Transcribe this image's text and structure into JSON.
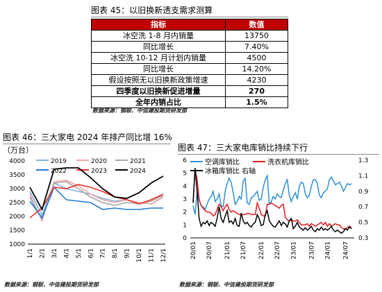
{
  "fig45": {
    "title": "图表 45：以旧换新透支需求测算",
    "headers": [
      "指标",
      "数值"
    ],
    "rows": [
      {
        "label": "冰空洗 1-8 月内销量",
        "value": "13750",
        "bold": false
      },
      {
        "label": "同比增长",
        "value": "7.40%",
        "bold": false
      },
      {
        "label": "冰空洗 10-12 月计划内销量",
        "value": "4500",
        "bold": false
      },
      {
        "label": "同比增长",
        "value": "14.20%",
        "bold": false
      },
      {
        "label": "假设按照无以旧换新政策增速",
        "value": "4230",
        "bold": false
      },
      {
        "label": "四季度以旧换新促进增量",
        "value": "270",
        "bold": true
      },
      {
        "label": "全年内销占比",
        "value": "1.5%",
        "bold": true
      }
    ],
    "source": "数据来源：钢联、中信建投期货研发部"
  },
  "fig46": {
    "title": "图表 46：三大家电 2024 年排产同比增 16%",
    "unit": "（万台）",
    "source": "数据来源：钢联、中信建投期货研发部"
  },
  "fig47": {
    "title": "图表 47：三大家电库销比持续下行",
    "source": "数据来源：钢联、中信建投期货研发部"
  },
  "chart_data": [
    {
      "type": "line",
      "title": "图表 46：三大家电 2024 年排产同比增 16%",
      "ylabel": "（万台）",
      "categories": [
        "1/1",
        "2/1",
        "3/1",
        "4/1",
        "5/1",
        "6/1",
        "7/1",
        "8/1",
        "9/1",
        "10/1",
        "11/1",
        "12/1"
      ],
      "ylim": [
        1000,
        4000
      ],
      "yticks": [
        1000,
        1500,
        2000,
        2500,
        3000,
        3500,
        4000
      ],
      "legend": "top",
      "series": [
        {
          "name": "2019",
          "color": "#7fb2e0",
          "values": [
            2900,
            2050,
            3200,
            3000,
            2900,
            2800,
            2650,
            2550,
            2600,
            2500,
            2450,
            2700
          ]
        },
        {
          "name": "2020",
          "color": "#f4a4a4",
          "values": [
            2800,
            1850,
            3250,
            3300,
            3100,
            2800,
            2600,
            2500,
            2600,
            2500,
            2450,
            2700
          ]
        },
        {
          "name": "2021",
          "color": "#a6a6a6",
          "values": [
            2700,
            1900,
            3200,
            3250,
            3000,
            2700,
            2500,
            2400,
            2500,
            2450,
            2550,
            2750
          ]
        },
        {
          "name": "2022",
          "color": "#1f77d4",
          "values": [
            2550,
            1950,
            3050,
            2600,
            2550,
            2500,
            2250,
            2300,
            2250,
            2250,
            2300,
            2300
          ]
        },
        {
          "name": "2023",
          "color": "#e8302a",
          "values": [
            1950,
            2300,
            3050,
            3000,
            3150,
            3050,
            2900,
            2700,
            2600,
            2450,
            2600,
            2800
          ]
        },
        {
          "name": "2024",
          "color": "#000000",
          "values": [
            3050,
            2250,
            3700,
            3750,
            3750,
            3400,
            3000,
            2700,
            2650,
            2850,
            3200,
            3450
          ]
        }
      ]
    },
    {
      "type": "line",
      "title": "图表 47：三大家电库销比持续下行",
      "xticks": [
        "20/01",
        "20/07",
        "21/01",
        "21/07",
        "22/01",
        "22/07",
        "23/01",
        "23/07",
        "24/01",
        "24/07"
      ],
      "y_left": {
        "lim": [
          0,
          6
        ],
        "ticks": [
          0,
          1,
          2,
          3,
          4,
          5,
          6
        ]
      },
      "y_right": {
        "lim": [
          0.3,
          1.3
        ],
        "ticks": [
          0.3,
          0.5,
          0.7,
          0.9,
          1.1,
          1.3
        ]
      },
      "legend": "top",
      "series": [
        {
          "name": "空调库销比",
          "color": "#2e8fd6",
          "axis": "left",
          "values": [
            2.5,
            1.8,
            3.6,
            2.9,
            2.5,
            2.4,
            2.2,
            2.6,
            3.0,
            3.2,
            3.6,
            2.8,
            3.0,
            3.4,
            2.5,
            2.4,
            3.6,
            4.2,
            4.6,
            4.3,
            3.5,
            2.6,
            2.8,
            3.2,
            3.0,
            4.4,
            4.6,
            2.7,
            2.6,
            3.1,
            3.2,
            3.4,
            3.6,
            2.9,
            3.0,
            3.9,
            4.5,
            4.8,
            2.6,
            2.8,
            3.2,
            3.0,
            3.4,
            3.2,
            3.1,
            3.7,
            4.2,
            4.5,
            3.3,
            2.8,
            3.2,
            3.5,
            3.0,
            4.0,
            4.3,
            4.2,
            3.4,
            3.1,
            3.3,
            4.0,
            4.5,
            4.5,
            4.2,
            3.3,
            3.1,
            3.5,
            3.6,
            3.8,
            4.5,
            4.7,
            4.4,
            4.1,
            4.2,
            4.3,
            4.0,
            3.6,
            3.9,
            4.2,
            4.1,
            4.2
          ]
        },
        {
          "name": "洗衣机库销比",
          "color": "#e31a1c",
          "axis": "left",
          "values": [
            2.8,
            5.3,
            4.5,
            3.0,
            2.5,
            2.3,
            2.1,
            2.0,
            2.0,
            1.9,
            1.7,
            1.8,
            2.2,
            2.6,
            2.4,
            2.1,
            2.4,
            2.6,
            2.2,
            2.0,
            2.1,
            2.0,
            1.9,
            1.8,
            1.8,
            1.8,
            1.8,
            1.9,
            1.9,
            1.8,
            1.8,
            1.8,
            2.7,
            2.3,
            1.8,
            1.7,
            1.7,
            2.6,
            2.6,
            2.7,
            2.6,
            2.5,
            2.4,
            2.3,
            2.5,
            2.6,
            1.6,
            1.4,
            1.3,
            1.4,
            1.3,
            1.3,
            1.4,
            1.2,
            1.0,
            1.0,
            1.0,
            1.1,
            0.9,
            1.1,
            1.0,
            0.9,
            1.0,
            1.1,
            1.2,
            1.0,
            1.2,
            0.9,
            1.1,
            0.9,
            1.0,
            1.1,
            1.0,
            1.0,
            0.8,
            0.7,
            0.7,
            0.8,
            0.9,
            0.8
          ]
        },
        {
          "name": "冰箱库销比 右轴",
          "color": "#000000",
          "axis": "right",
          "values": [
            0.75,
            1.2,
            0.9,
            0.55,
            0.45,
            0.5,
            0.48,
            0.52,
            0.46,
            0.5,
            0.48,
            0.45,
            0.55,
            0.7,
            0.55,
            0.5,
            0.58,
            0.65,
            0.5,
            0.52,
            0.48,
            0.55,
            0.46,
            0.45,
            0.62,
            0.52,
            0.48,
            0.5,
            0.46,
            0.44,
            0.48,
            0.5,
            0.6,
            0.55,
            0.46,
            0.47,
            0.6,
            0.65,
            0.52,
            0.48,
            0.45,
            0.44,
            0.48,
            0.52,
            0.46,
            0.5,
            0.48,
            0.44,
            0.52,
            0.55,
            0.42,
            0.45,
            0.5,
            0.44,
            0.42,
            0.4,
            0.43,
            0.4,
            0.42,
            0.45,
            0.4,
            0.38,
            0.42,
            0.4,
            0.44,
            0.4,
            0.42,
            0.4,
            0.42,
            0.45,
            0.4,
            0.38,
            0.4,
            0.38,
            0.36,
            0.38,
            0.42,
            0.4,
            0.44,
            0.42
          ]
        }
      ]
    }
  ]
}
